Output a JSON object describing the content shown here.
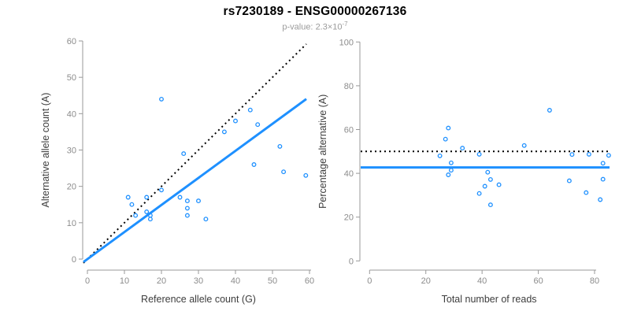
{
  "header": {
    "title": "rs7230189 - ENSG00000267136",
    "subtitle_prefix": "p-value: ",
    "subtitle_mantissa": "2.3×10",
    "subtitle_exponent": "-7"
  },
  "colors": {
    "accent_blue": "#1E90FF",
    "line_black": "#000000",
    "axis_gray": "#999999",
    "tick_label_gray": "#8c8c8c",
    "axis_title_gray": "#3d3d3d",
    "subtitle_gray": "#9b9b9b"
  },
  "chart_data": [
    {
      "type": "scatter",
      "panel": "left",
      "xlabel": "Reference allele count (G)",
      "ylabel": "Alternative allele count (A)",
      "xlim": [
        0,
        60
      ],
      "ylim": [
        0,
        60
      ],
      "xticks": [
        0,
        10,
        20,
        30,
        40,
        50,
        60
      ],
      "yticks": [
        0,
        10,
        20,
        30,
        40,
        50,
        60
      ],
      "grid": false,
      "legend": "none",
      "points": [
        [
          20,
          44
        ],
        [
          44,
          41
        ],
        [
          40,
          38
        ],
        [
          46,
          37
        ],
        [
          37,
          35
        ],
        [
          52,
          31
        ],
        [
          26,
          29
        ],
        [
          45,
          26
        ],
        [
          53,
          24
        ],
        [
          59,
          23
        ],
        [
          20,
          19
        ],
        [
          11,
          17
        ],
        [
          16,
          17
        ],
        [
          25,
          17
        ],
        [
          27,
          16
        ],
        [
          30,
          16
        ],
        [
          12,
          15
        ],
        [
          27,
          14
        ],
        [
          16,
          13
        ],
        [
          13,
          12
        ],
        [
          17,
          12
        ],
        [
          27,
          12
        ],
        [
          17,
          11
        ],
        [
          32,
          11
        ]
      ],
      "lines": [
        {
          "name": "identity-line",
          "kind": "abline",
          "slope": 1,
          "intercept": 0,
          "style": "dotted",
          "color": "black"
        },
        {
          "name": "fit-line",
          "kind": "abline",
          "slope": 0.7444,
          "intercept": 0,
          "style": "solid",
          "color": "blue"
        }
      ]
    },
    {
      "type": "scatter",
      "panel": "right",
      "xlabel": "Total number of reads",
      "ylabel": "Percentage alternative (A)",
      "xlim": [
        0,
        85
      ],
      "ylim": [
        0,
        100
      ],
      "xticks": [
        0,
        20,
        40,
        60,
        80
      ],
      "yticks": [
        0,
        20,
        40,
        60,
        80,
        100
      ],
      "grid": false,
      "legend": "none",
      "points": [
        [
          64,
          68.8
        ],
        [
          85,
          48.2
        ],
        [
          78,
          48.7
        ],
        [
          83,
          44.6
        ],
        [
          72,
          48.6
        ],
        [
          83,
          37.3
        ],
        [
          55,
          52.7
        ],
        [
          71,
          36.6
        ],
        [
          77,
          31.2
        ],
        [
          82,
          28.0
        ],
        [
          39,
          48.7
        ],
        [
          28,
          60.7
        ],
        [
          33,
          51.5
        ],
        [
          42,
          40.5
        ],
        [
          43,
          37.2
        ],
        [
          46,
          34.8
        ],
        [
          27,
          55.6
        ],
        [
          41,
          34.1
        ],
        [
          29,
          44.8
        ],
        [
          25,
          48.0
        ],
        [
          29,
          41.4
        ],
        [
          39,
          30.8
        ],
        [
          28,
          39.3
        ],
        [
          43,
          25.6
        ]
      ],
      "lines": [
        {
          "name": "null-line",
          "kind": "hline",
          "y": 50,
          "style": "dotted",
          "color": "black"
        },
        {
          "name": "fit-line",
          "kind": "hline",
          "y": 42.7,
          "style": "solid",
          "color": "blue"
        }
      ]
    }
  ]
}
